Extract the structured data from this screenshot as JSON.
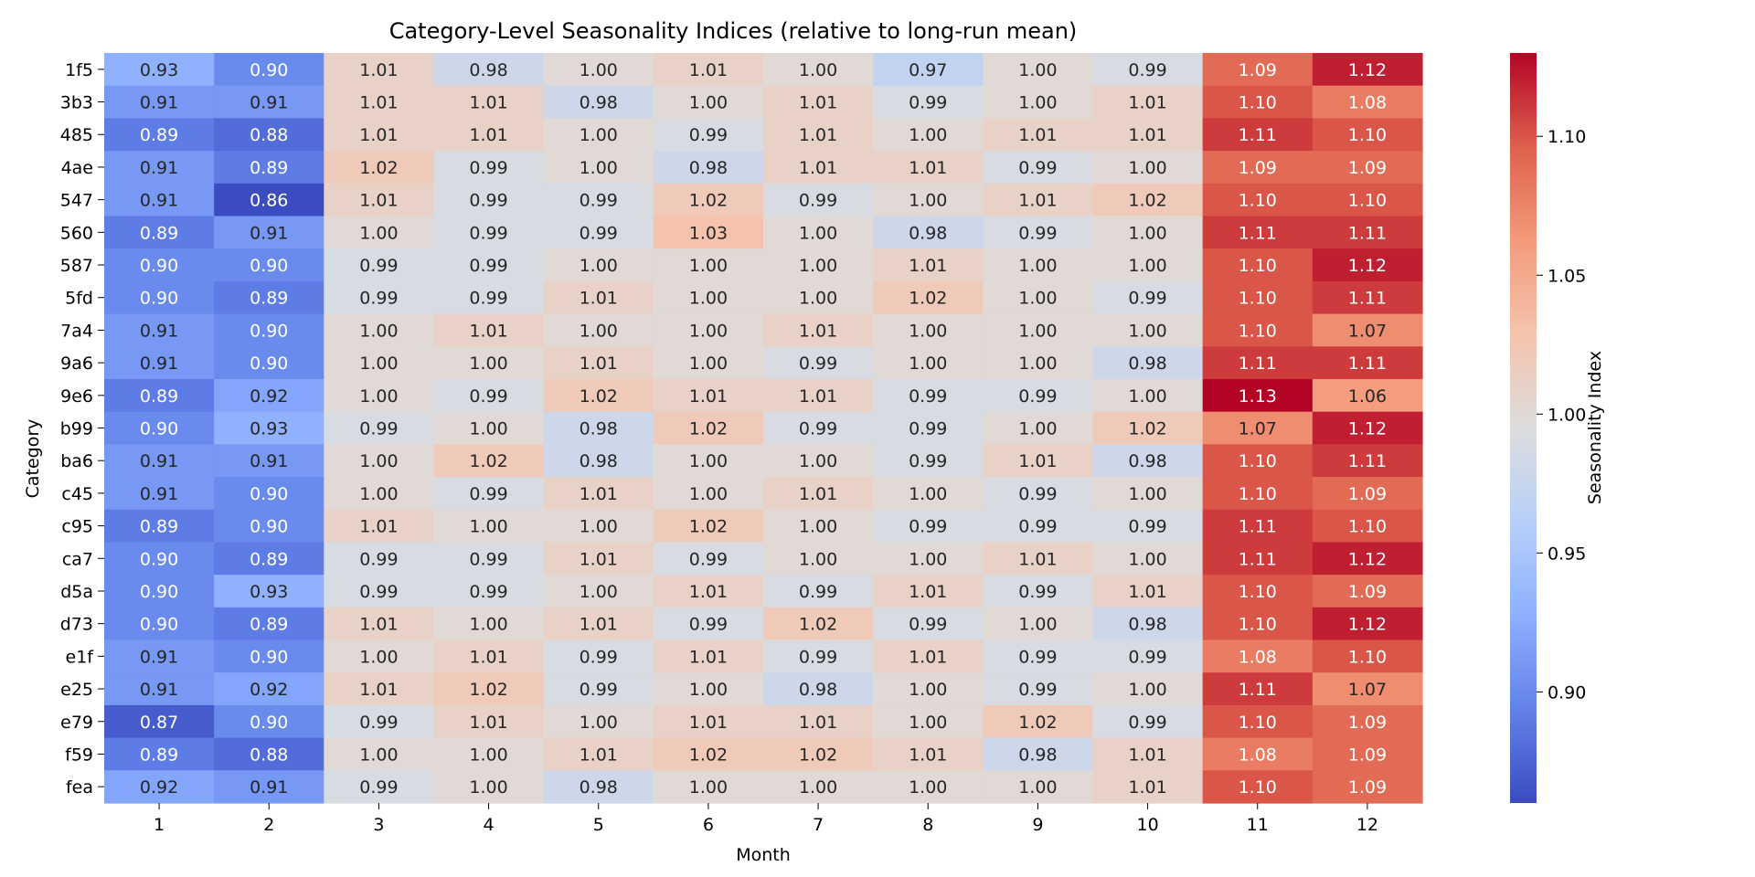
{
  "chart_data": {
    "type": "heatmap",
    "title": "Category-Level Seasonality Indices (relative to long-run mean)",
    "xlabel": "Month",
    "ylabel": "Category",
    "colorbar_label": "Seasonality Index",
    "colormap": "coolwarm",
    "vmin": 0.86,
    "vmax": 1.13,
    "colorbar_ticks": [
      "0.90",
      "0.95",
      "1.00",
      "1.05",
      "1.10"
    ],
    "x": [
      "1",
      "2",
      "3",
      "4",
      "5",
      "6",
      "7",
      "8",
      "9",
      "10",
      "11",
      "12"
    ],
    "y": [
      "1f5",
      "3b3",
      "485",
      "4ae",
      "547",
      "560",
      "587",
      "5fd",
      "7a4",
      "9a6",
      "9e6",
      "b99",
      "ba6",
      "c45",
      "c95",
      "ca7",
      "d5a",
      "d73",
      "e1f",
      "e25",
      "e79",
      "f59",
      "fea"
    ],
    "values": [
      [
        0.93,
        0.9,
        1.01,
        0.98,
        1.0,
        1.01,
        1.0,
        0.97,
        1.0,
        0.99,
        1.09,
        1.12
      ],
      [
        0.91,
        0.91,
        1.01,
        1.01,
        0.98,
        1.0,
        1.01,
        0.99,
        1.0,
        1.01,
        1.1,
        1.08
      ],
      [
        0.89,
        0.88,
        1.01,
        1.01,
        1.0,
        0.99,
        1.01,
        1.0,
        1.01,
        1.01,
        1.11,
        1.1
      ],
      [
        0.91,
        0.89,
        1.02,
        0.99,
        1.0,
        0.98,
        1.01,
        1.01,
        0.99,
        1.0,
        1.09,
        1.09
      ],
      [
        0.91,
        0.86,
        1.01,
        0.99,
        0.99,
        1.02,
        0.99,
        1.0,
        1.01,
        1.02,
        1.1,
        1.1
      ],
      [
        0.89,
        0.91,
        1.0,
        0.99,
        0.99,
        1.03,
        1.0,
        0.98,
        0.99,
        1.0,
        1.11,
        1.11
      ],
      [
        0.9,
        0.9,
        0.99,
        0.99,
        1.0,
        1.0,
        1.0,
        1.01,
        1.0,
        1.0,
        1.1,
        1.12
      ],
      [
        0.9,
        0.89,
        0.99,
        0.99,
        1.01,
        1.0,
        1.0,
        1.02,
        1.0,
        0.99,
        1.1,
        1.11
      ],
      [
        0.91,
        0.9,
        1.0,
        1.01,
        1.0,
        1.0,
        1.01,
        1.0,
        1.0,
        1.0,
        1.1,
        1.07
      ],
      [
        0.91,
        0.9,
        1.0,
        1.0,
        1.01,
        1.0,
        0.99,
        1.0,
        1.0,
        0.98,
        1.11,
        1.11
      ],
      [
        0.89,
        0.92,
        1.0,
        0.99,
        1.02,
        1.01,
        1.01,
        0.99,
        0.99,
        1.0,
        1.13,
        1.06
      ],
      [
        0.9,
        0.93,
        0.99,
        1.0,
        0.98,
        1.02,
        0.99,
        0.99,
        1.0,
        1.02,
        1.07,
        1.12
      ],
      [
        0.91,
        0.91,
        1.0,
        1.02,
        0.98,
        1.0,
        1.0,
        0.99,
        1.01,
        0.98,
        1.1,
        1.11
      ],
      [
        0.91,
        0.9,
        1.0,
        0.99,
        1.01,
        1.0,
        1.01,
        1.0,
        0.99,
        1.0,
        1.1,
        1.09
      ],
      [
        0.89,
        0.9,
        1.01,
        1.0,
        1.0,
        1.02,
        1.0,
        0.99,
        0.99,
        0.99,
        1.11,
        1.1
      ],
      [
        0.9,
        0.89,
        0.99,
        0.99,
        1.01,
        0.99,
        1.0,
        1.0,
        1.01,
        1.0,
        1.11,
        1.12
      ],
      [
        0.9,
        0.93,
        0.99,
        0.99,
        1.0,
        1.01,
        0.99,
        1.01,
        0.99,
        1.01,
        1.1,
        1.09
      ],
      [
        0.9,
        0.89,
        1.01,
        1.0,
        1.01,
        0.99,
        1.02,
        0.99,
        1.0,
        0.98,
        1.1,
        1.12
      ],
      [
        0.91,
        0.9,
        1.0,
        1.01,
        0.99,
        1.01,
        0.99,
        1.01,
        0.99,
        0.99,
        1.08,
        1.1
      ],
      [
        0.91,
        0.92,
        1.01,
        1.02,
        0.99,
        1.0,
        0.98,
        1.0,
        0.99,
        1.0,
        1.11,
        1.07
      ],
      [
        0.87,
        0.9,
        0.99,
        1.01,
        1.0,
        1.01,
        1.01,
        1.0,
        1.02,
        0.99,
        1.1,
        1.09
      ],
      [
        0.89,
        0.88,
        1.0,
        1.0,
        1.01,
        1.02,
        1.02,
        1.01,
        0.98,
        1.01,
        1.08,
        1.09
      ],
      [
        0.92,
        0.91,
        0.99,
        1.0,
        0.98,
        1.0,
        1.0,
        1.0,
        1.0,
        1.01,
        1.1,
        1.09
      ]
    ]
  }
}
